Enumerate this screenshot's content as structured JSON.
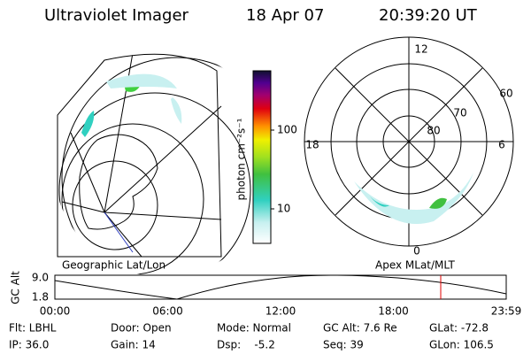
{
  "header": {
    "instrument": "Ultraviolet Imager",
    "date": "18 Apr 07",
    "time": "20:39:20 UT"
  },
  "colorbar": {
    "label": "photon cm⁻²s⁻¹",
    "ticks": [
      "100",
      "10"
    ]
  },
  "left_map": {
    "caption": "Geographic Lat/Lon"
  },
  "right_map": {
    "caption": "Apex MLat/MLT",
    "mlt_labels": [
      "12",
      "18",
      "6",
      "0"
    ],
    "lat_labels": [
      "60",
      "70",
      "80"
    ]
  },
  "orbit": {
    "ylabel": "GC Alt",
    "yticks": [
      "9.0",
      "1.8"
    ],
    "xticks": [
      "00:00",
      "06:00",
      "12:00",
      "18:00",
      "23:59"
    ]
  },
  "info": [
    [
      "Flt: LBHL",
      "Door: Open",
      "Mode: Normal",
      "GC Alt: 7.6 Re",
      "GLat: -72.8"
    ],
    [
      "IP: 36.0",
      "Gain: 14",
      "Dsp:    -5.2",
      "Seq: 39",
      "GLon: 106.5"
    ]
  ]
}
